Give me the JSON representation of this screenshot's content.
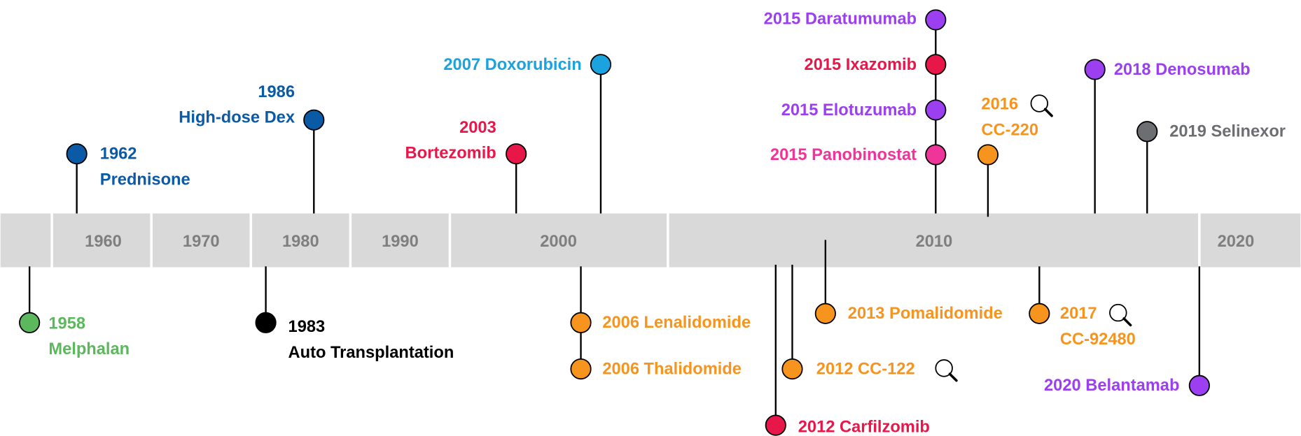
{
  "decades": [
    "1960",
    "1970",
    "1980",
    "1990",
    "2000",
    "2010",
    "2020"
  ],
  "events": [
    {
      "lines": [
        "1958",
        "Melphalan"
      ],
      "color": "#5cb85c"
    },
    {
      "lines": [
        "1962",
        "Prednisone"
      ],
      "color": "#0b5aa6"
    },
    {
      "lines": [
        "1983",
        "Auto Transplantation"
      ],
      "color": "#000000"
    },
    {
      "lines": [
        "1986",
        "High-dose Dex"
      ],
      "color": "#0b5aa6"
    },
    {
      "lines": [
        "2003",
        "Bortezomib"
      ],
      "color": "#e8174a"
    },
    {
      "lines": [
        "2007 Doxorubicin"
      ],
      "color": "#1ba3e0"
    },
    {
      "lines": [
        "2006 Lenalidomide"
      ],
      "color": "#f7941d"
    },
    {
      "lines": [
        "2006 Thalidomide"
      ],
      "color": "#f7941d"
    },
    {
      "lines": [
        "2012 Carfilzomib"
      ],
      "color": "#e8174a"
    },
    {
      "lines": [
        "2012 CC-122"
      ],
      "color": "#f7941d"
    },
    {
      "lines": [
        "2013 Pomalidomide"
      ],
      "color": "#f7941d"
    },
    {
      "lines": [
        "2015 Daratumumab"
      ],
      "color": "#9b3ff0"
    },
    {
      "lines": [
        "2015 Ixazomib"
      ],
      "color": "#e8174a"
    },
    {
      "lines": [
        "2015 Elotuzumab"
      ],
      "color": "#9b3ff0"
    },
    {
      "lines": [
        "2015 Panobinostat"
      ],
      "color": "#f0359a"
    },
    {
      "lines": [
        "2016",
        "CC-220"
      ],
      "color": "#f7941d"
    },
    {
      "lines": [
        "2017",
        "CC-92480"
      ],
      "color": "#f7941d"
    },
    {
      "lines": [
        "2018 Denosumab"
      ],
      "color": "#9b3ff0"
    },
    {
      "lines": [
        "2019 Selinexor"
      ],
      "color": "#6d6e71"
    },
    {
      "lines": [
        "2020 Belantamab"
      ],
      "color": "#9b3ff0"
    }
  ]
}
